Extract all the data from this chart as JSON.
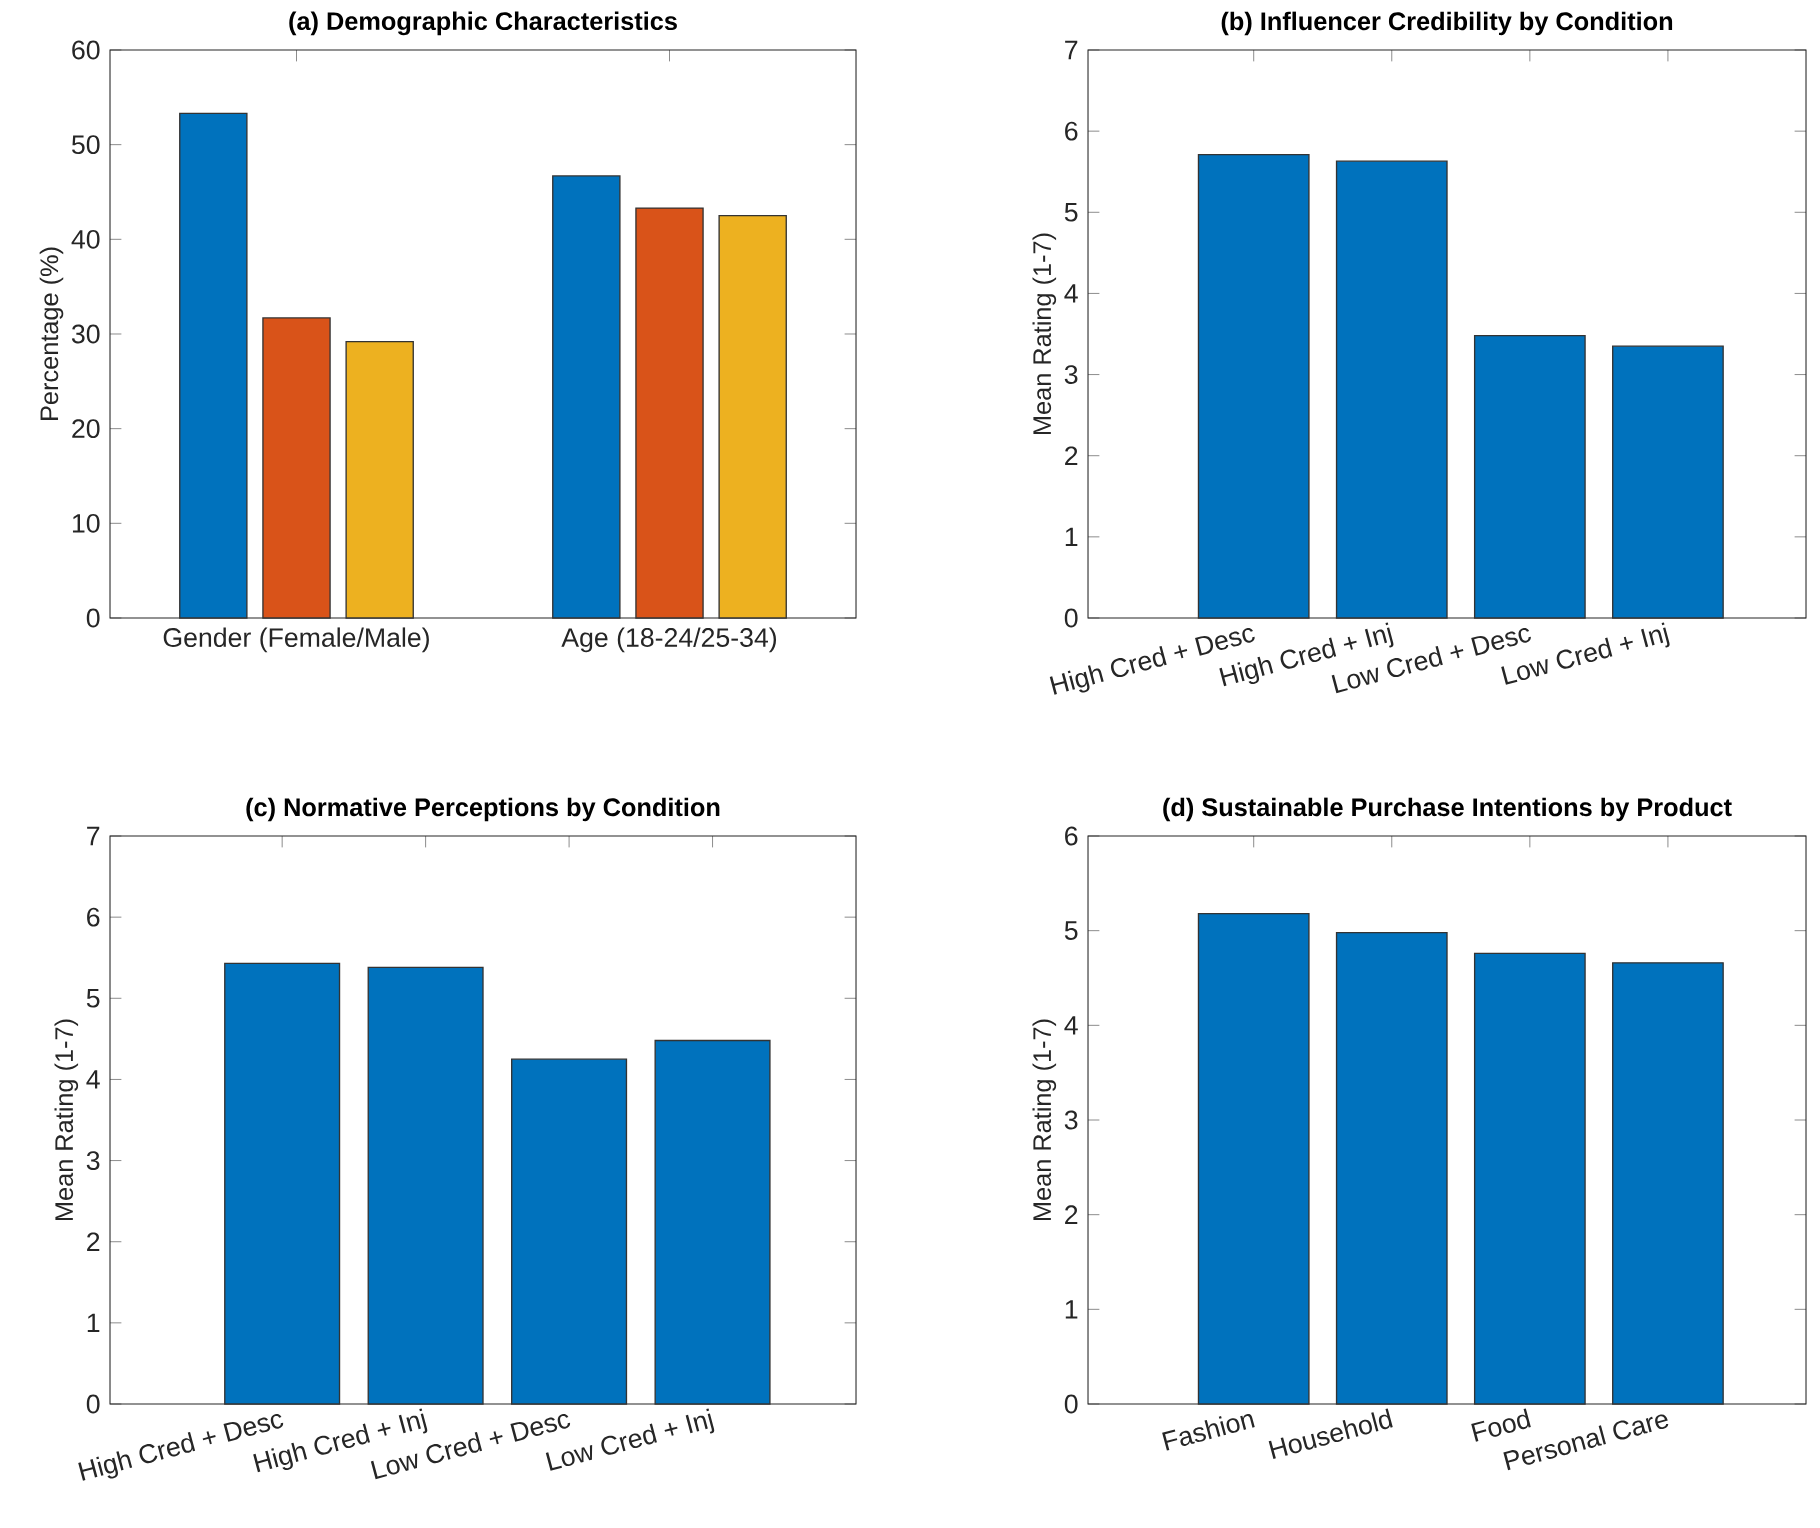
{
  "chart_data": [
    {
      "type": "bar",
      "title": "(a) Demographic Characteristics",
      "ylabel": "Percentage (%)",
      "categories": [
        "Gender (Female/Male)",
        "Age (18-24/25-34)"
      ],
      "ylim": [
        0,
        60
      ],
      "yticks": [
        0,
        10,
        20,
        30,
        40,
        50,
        60
      ],
      "series": [
        {
          "color": "#0072bd",
          "values": [
            53.3,
            46.7
          ]
        },
        {
          "color": "#d95319",
          "values": [
            31.7,
            43.3
          ]
        },
        {
          "color": "#edb120",
          "values": [
            29.2,
            42.5
          ]
        }
      ]
    },
    {
      "type": "bar",
      "title": "(b) Influencer Credibility by Condition",
      "ylabel": "Mean Rating (1-7)",
      "categories": [
        "High Cred + Desc",
        "High Cred + Inj",
        "Low Cred + Desc",
        "Low Cred + Inj"
      ],
      "ylim": [
        0,
        7
      ],
      "yticks": [
        0,
        1,
        2,
        3,
        4,
        5,
        6,
        7
      ],
      "color": "#0072bd",
      "values": [
        5.71,
        5.63,
        3.48,
        3.35
      ]
    },
    {
      "type": "bar",
      "title": "(c) Normative Perceptions by Condition",
      "ylabel": "Mean Rating (1-7)",
      "categories": [
        "High Cred + Desc",
        "High Cred + Inj",
        "Low Cred + Desc",
        "Low Cred + Inj"
      ],
      "ylim": [
        0,
        7
      ],
      "yticks": [
        0,
        1,
        2,
        3,
        4,
        5,
        6,
        7
      ],
      "color": "#0072bd",
      "values": [
        5.43,
        5.38,
        4.25,
        4.48
      ]
    },
    {
      "type": "bar",
      "title": "(d) Sustainable Purchase Intentions by Product",
      "ylabel": "Mean Rating (1-7)",
      "categories": [
        "Fashion",
        "Household",
        "Food",
        "Personal Care"
      ],
      "ylim": [
        0,
        6
      ],
      "yticks": [
        0,
        1,
        2,
        3,
        4,
        5,
        6
      ],
      "color": "#0072bd",
      "values": [
        5.18,
        4.98,
        4.76,
        4.66
      ]
    }
  ]
}
